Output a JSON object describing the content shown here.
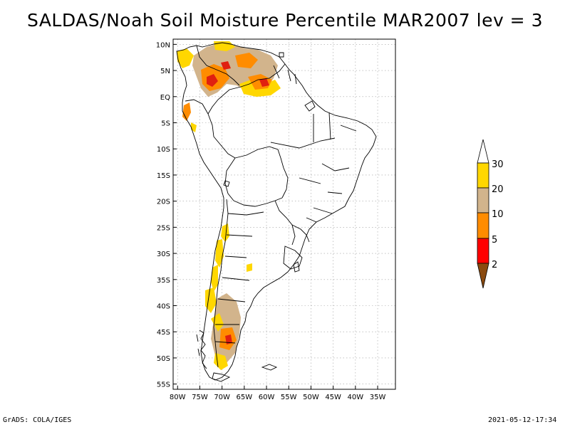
{
  "title": "SALDAS/Noah Soil Moisture Percentile MAR2007 lev = 3",
  "footer": {
    "left": "GrADS: COLA/IGES",
    "right": "2021-05-12-17:34"
  },
  "map": {
    "lon_range": [
      -81,
      -31
    ],
    "lat_range": [
      -56,
      11
    ],
    "grid": true,
    "lat_ticks": [
      {
        "value": 10,
        "label": "10N"
      },
      {
        "value": 5,
        "label": "5N"
      },
      {
        "value": 0,
        "label": "EQ"
      },
      {
        "value": -5,
        "label": "5S"
      },
      {
        "value": -10,
        "label": "10S"
      },
      {
        "value": -15,
        "label": "15S"
      },
      {
        "value": -20,
        "label": "20S"
      },
      {
        "value": -25,
        "label": "25S"
      },
      {
        "value": -30,
        "label": "30S"
      },
      {
        "value": -35,
        "label": "35S"
      },
      {
        "value": -40,
        "label": "40S"
      },
      {
        "value": -45,
        "label": "45S"
      },
      {
        "value": -50,
        "label": "50S"
      },
      {
        "value": -55,
        "label": "55S"
      }
    ],
    "lon_ticks": [
      {
        "value": -80,
        "label": "80W"
      },
      {
        "value": -75,
        "label": "75W"
      },
      {
        "value": -70,
        "label": "70W"
      },
      {
        "value": -65,
        "label": "65W"
      },
      {
        "value": -60,
        "label": "60W"
      },
      {
        "value": -55,
        "label": "55W"
      },
      {
        "value": -50,
        "label": "50W"
      },
      {
        "value": -45,
        "label": "45W"
      },
      {
        "value": -40,
        "label": "40W"
      },
      {
        "value": -35,
        "label": "35W"
      }
    ]
  },
  "colorbar": {
    "labels": [
      "2",
      "5",
      "10",
      "20",
      "30"
    ],
    "colors": {
      "below_2": "#8a4a0f",
      "2_5": "#ff0000",
      "5_10": "#ff8c00",
      "10_20": "#d2b48c",
      "20_30": "#ffd700",
      "above_30": "#ffffff"
    }
  },
  "colors": {
    "coastline": "#000000",
    "grid": "#a0a0a0",
    "dry_red": "#e02010",
    "dry_orange": "#ff8c00",
    "dry_tan": "#d2b48c",
    "dry_gold": "#ffd700"
  }
}
